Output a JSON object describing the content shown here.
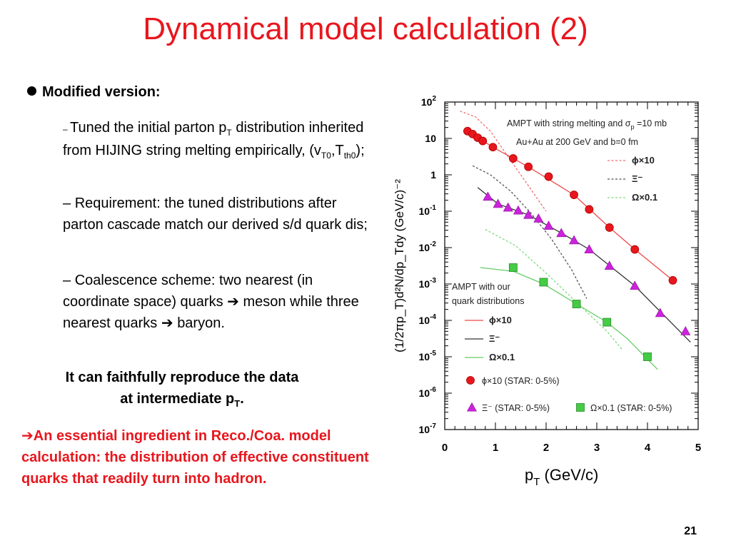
{
  "slide": {
    "title": "Dynamical model calculation (2)",
    "bullet": "Modified version:",
    "item1": {
      "text_a": "Tuned the initial parton p",
      "sub_a": "T",
      "text_b": " distribution inherited from HIJING string melting empirically, (v",
      "sub_b": "T0",
      "text_c": ",T",
      "sub_c": "th0",
      "text_d": ");"
    },
    "item2": "Requirement: the tuned distributions after parton cascade match our derived s/d quark dis;",
    "item3": {
      "text_a": "Coalescence scheme: two nearest (in coordinate space) quarks",
      "text_b": "meson while three nearest quarks",
      "text_c": "baryon."
    },
    "conclusion": {
      "line1": "It can faithfully reproduce the data",
      "line2": "at intermediate p",
      "sub": "T",
      "end": "."
    },
    "note": "An essential ingredient in Reco./Coa. model calculation: the distribution of effective constituent quarks that readily turn into hadron.",
    "page_number": "21"
  },
  "chart_data": {
    "type": "scatter",
    "xlabel": "p",
    "xlabel_sub": "T",
    "xlabel_unit": " (GeV/c)",
    "ylabel": "(1/2πp_T)d²N/dp_Tdy (GeV/c)⁻²",
    "xlim": [
      0,
      5
    ],
    "ylim_log10": [
      -7,
      2
    ],
    "log_y": true,
    "x_ticks": [
      "0",
      "1",
      "2",
      "3",
      "4",
      "5"
    ],
    "y_ticks": [
      {
        "base": "10",
        "exp": "2"
      },
      {
        "base": "10",
        "exp": ""
      },
      {
        "base": "1",
        "exp": ""
      },
      {
        "base": "10",
        "exp": "-1"
      },
      {
        "base": "10",
        "exp": "-2"
      },
      {
        "base": "10",
        "exp": "-3"
      },
      {
        "base": "10",
        "exp": "-4"
      },
      {
        "base": "10",
        "exp": "-5"
      },
      {
        "base": "10",
        "exp": "-6"
      },
      {
        "base": "10",
        "exp": "-7"
      }
    ],
    "annotations": {
      "top_line1": "AMPT with string melting and σ",
      "top_sub": "p",
      "top_line1_end": " =10 mb",
      "top_line2": "Au+Au at 200 GeV and b=0 fm",
      "mid_line1": "AMPT with our",
      "mid_line2": "quark distributions"
    },
    "legend_top": [
      {
        "label": "ϕ×10",
        "color": "#f26d6d"
      },
      {
        "label": "Ξ⁻",
        "color": "#555555"
      },
      {
        "label": "Ω×0.1",
        "color": "#7ddc7d"
      }
    ],
    "legend_mid": [
      {
        "label": "ϕ×10",
        "color": "#f04848"
      },
      {
        "label": "Ξ⁻",
        "color": "#333333"
      },
      {
        "label": "Ω×0.1",
        "color": "#66cc66"
      }
    ],
    "legend_data": [
      {
        "label": "ϕ×10 (STAR: 0-5%)",
        "color": "#e8161d",
        "marker": "circle"
      },
      {
        "label": "Ξ⁻ (STAR: 0-5%)",
        "color": "#cc22dd",
        "marker": "triangle"
      },
      {
        "label": "Ω×0.1 (STAR: 0-5%)",
        "color": "#44cc44",
        "marker": "square"
      }
    ],
    "series": [
      {
        "name": "ϕ×10 (STAR: 0-5%)",
        "marker": "circle",
        "color": "#e8161d",
        "points": [
          [
            0.45,
            1.2
          ],
          [
            0.55,
            1.12
          ],
          [
            0.65,
            1.02
          ],
          [
            0.75,
            0.93
          ],
          [
            0.95,
            0.76
          ],
          [
            1.35,
            0.45
          ],
          [
            1.65,
            0.22
          ],
          [
            2.05,
            -0.05
          ],
          [
            2.55,
            -0.55
          ],
          [
            2.85,
            -0.95
          ],
          [
            3.25,
            -1.45
          ],
          [
            3.75,
            -2.05
          ],
          [
            4.5,
            -2.9
          ]
        ]
      },
      {
        "name": "Ξ⁻ (STAR: 0-5%)",
        "marker": "triangle",
        "color": "#cc22dd",
        "points": [
          [
            0.85,
            -0.6
          ],
          [
            1.05,
            -0.8
          ],
          [
            1.25,
            -0.9
          ],
          [
            1.45,
            -0.98
          ],
          [
            1.65,
            -1.1
          ],
          [
            1.85,
            -1.2
          ],
          [
            2.05,
            -1.4
          ],
          [
            2.3,
            -1.6
          ],
          [
            2.55,
            -1.8
          ],
          [
            2.85,
            -2.05
          ],
          [
            3.25,
            -2.5
          ],
          [
            3.75,
            -3.05
          ],
          [
            4.25,
            -3.8
          ],
          [
            4.75,
            -4.3
          ]
        ]
      },
      {
        "name": "Ω×0.1 (STAR: 0-5%)",
        "marker": "square",
        "color": "#44cc44",
        "points": [
          [
            1.35,
            -2.55
          ],
          [
            1.95,
            -2.95
          ],
          [
            2.6,
            -3.55
          ],
          [
            3.2,
            -4.05
          ],
          [
            4.0,
            -5.0
          ]
        ]
      }
    ],
    "curves": [
      {
        "id": "string-phi",
        "style": "dotted",
        "color": "#f26d6d",
        "points": [
          [
            0.3,
            1.75
          ],
          [
            0.6,
            1.6
          ],
          [
            0.9,
            1.2
          ],
          [
            1.2,
            0.6
          ],
          [
            1.5,
            0.0
          ],
          [
            1.8,
            -0.6
          ],
          [
            2.0,
            -1.0
          ]
        ]
      },
      {
        "id": "string-xi",
        "style": "dotted",
        "color": "#555555",
        "points": [
          [
            0.55,
            0.25
          ],
          [
            0.9,
            0.0
          ],
          [
            1.3,
            -0.45
          ],
          [
            1.7,
            -1.05
          ],
          [
            2.1,
            -1.75
          ],
          [
            2.5,
            -2.6
          ],
          [
            2.8,
            -3.4
          ]
        ]
      },
      {
        "id": "string-omega",
        "style": "dotted",
        "color": "#7ddc7d",
        "points": [
          [
            0.8,
            -1.5
          ],
          [
            1.4,
            -1.95
          ],
          [
            2.0,
            -2.7
          ],
          [
            2.6,
            -3.5
          ],
          [
            3.2,
            -4.3
          ],
          [
            3.5,
            -4.8
          ]
        ]
      },
      {
        "id": "quark-phi",
        "style": "solid",
        "color": "#f04848",
        "points": [
          [
            0.45,
            1.2
          ],
          [
            0.95,
            0.76
          ],
          [
            1.65,
            0.22
          ],
          [
            2.55,
            -0.55
          ],
          [
            3.25,
            -1.45
          ],
          [
            3.75,
            -2.05
          ],
          [
            4.5,
            -2.9
          ]
        ]
      },
      {
        "id": "quark-xi",
        "style": "solid",
        "color": "#333333",
        "points": [
          [
            0.65,
            -0.35
          ],
          [
            1.05,
            -0.8
          ],
          [
            1.65,
            -1.1
          ],
          [
            2.3,
            -1.6
          ],
          [
            2.85,
            -2.05
          ],
          [
            3.75,
            -3.05
          ],
          [
            4.85,
            -4.6
          ]
        ]
      },
      {
        "id": "quark-omega",
        "style": "solid",
        "color": "#66cc66",
        "points": [
          [
            0.7,
            -2.55
          ],
          [
            1.35,
            -2.65
          ],
          [
            1.95,
            -3.0
          ],
          [
            2.6,
            -3.55
          ],
          [
            3.2,
            -4.05
          ],
          [
            3.6,
            -4.5
          ],
          [
            4.2,
            -5.35
          ]
        ]
      }
    ]
  }
}
